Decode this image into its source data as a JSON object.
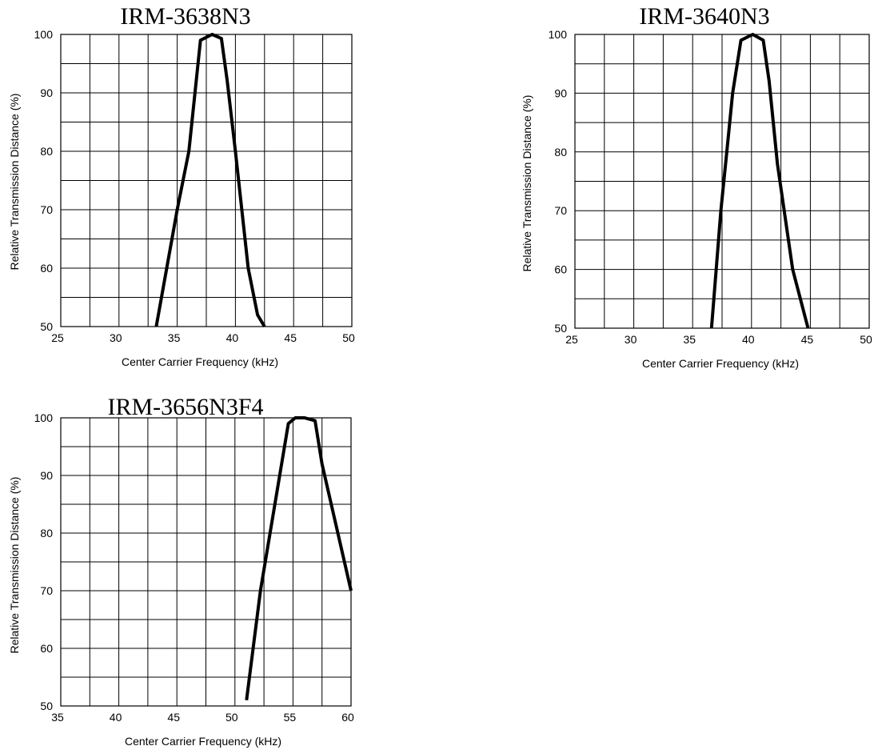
{
  "chart_data": [
    {
      "type": "line",
      "title": "IRM-3638N3",
      "xlabel": "Center Carrier Frequency  (kHz)",
      "ylabel": "Relative Transmission Distance (%)",
      "xlim": [
        25,
        50
      ],
      "ylim": [
        50,
        100
      ],
      "x_ticks": [
        "25",
        "30",
        "35",
        "40",
        "45",
        "50"
      ],
      "y_ticks": [
        "50",
        "60",
        "70",
        "80",
        "90",
        "100"
      ],
      "x_minor_step": 2.5,
      "y_minor_step": 5,
      "grid": true,
      "series": [
        {
          "x": [
            33.2,
            35.0,
            36.0,
            37.0,
            38.0,
            38.8,
            39.3,
            40.0,
            41.1,
            41.9,
            42.5
          ],
          "y": [
            50,
            70,
            80,
            99,
            100,
            99.3,
            92,
            80,
            60,
            52,
            50
          ]
        }
      ]
    },
    {
      "type": "line",
      "title": "IRM-3640N3",
      "xlabel": "Center Carrier Frequency  (kHz)",
      "ylabel": "Relative Transmission Distance (%)",
      "xlim": [
        25,
        50
      ],
      "ylim": [
        50,
        100
      ],
      "x_ticks": [
        "25",
        "30",
        "35",
        "40",
        "45",
        "50"
      ],
      "y_ticks": [
        "50",
        "60",
        "70",
        "80",
        "90",
        "100"
      ],
      "x_minor_step": 2.5,
      "y_minor_step": 5,
      "grid": true,
      "series": [
        {
          "x": [
            36.6,
            37.4,
            37.9,
            38.4,
            39.1,
            40.1,
            41.0,
            41.5,
            42.2,
            43.5,
            44.8
          ],
          "y": [
            50,
            70,
            80,
            90,
            99,
            100,
            99,
            92,
            78,
            60,
            50
          ]
        }
      ]
    },
    {
      "type": "line",
      "title": "IRM-3656N3F4",
      "xlabel": "Center Carrier Frequency  (kHz)",
      "ylabel": "Relative Transmission Distance (%)",
      "xlim": [
        35,
        60
      ],
      "ylim": [
        50,
        100
      ],
      "x_ticks": [
        "35",
        "40",
        "45",
        "50",
        "55",
        "60"
      ],
      "y_ticks": [
        "50",
        "60",
        "70",
        "80",
        "90",
        "100"
      ],
      "x_minor_step": 2.5,
      "y_minor_step": 5,
      "grid": true,
      "series": [
        {
          "x": [
            51.0,
            52.2,
            54.6,
            55.2,
            56.0,
            56.9,
            57.5,
            60.0
          ],
          "y": [
            51,
            70,
            99,
            100,
            100,
            99.5,
            92,
            70
          ]
        }
      ]
    }
  ]
}
